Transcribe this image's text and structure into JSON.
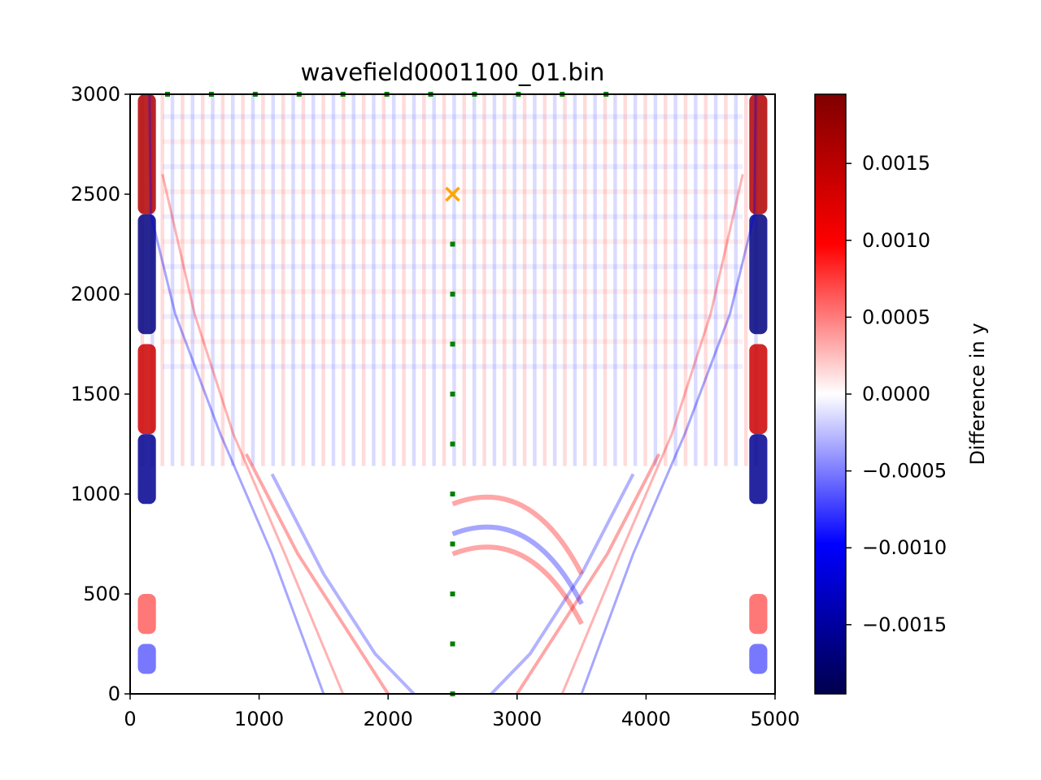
{
  "chart_data": {
    "type": "heatmap",
    "title": "wavefield0001100_01.bin",
    "xlabel": "",
    "ylabel": "",
    "xlim": [
      0,
      5000
    ],
    "ylim": [
      0,
      3000
    ],
    "xticks": [
      0,
      1000,
      2000,
      3000,
      4000,
      5000
    ],
    "yticks": [
      0,
      500,
      1000,
      1500,
      2000,
      2500,
      3000
    ],
    "xtick_labels": [
      "0",
      "1000",
      "2000",
      "3000",
      "4000",
      "5000"
    ],
    "ytick_labels": [
      "0",
      "500",
      "1000",
      "1500",
      "2000",
      "2500",
      "3000"
    ],
    "colormap": "seismic",
    "colorbar": {
      "label": "Difference in y",
      "range": [
        -0.00195,
        0.00195
      ],
      "ticks": [
        -0.0015,
        -0.001,
        -0.0005,
        0.0,
        0.0005,
        0.001,
        0.0015
      ],
      "tick_labels": [
        "−0.0015",
        "−0.0010",
        "−0.0005",
        "0.0000",
        "0.0005",
        "0.0010",
        "0.0015"
      ]
    },
    "source": {
      "x": 2500,
      "y": 2500,
      "marker": "x",
      "color": "#ffa500"
    },
    "receivers_surface": {
      "x": [
        290,
        630,
        970,
        1310,
        1650,
        1990,
        2330,
        2670,
        3010,
        3350,
        3690
      ],
      "y": 3000,
      "marker": "square",
      "color": "#008000"
    },
    "receivers_well": {
      "x": 2500,
      "y": [
        0,
        250,
        500,
        750,
        1000,
        1250,
        1500,
        1750,
        2000,
        2250
      ],
      "marker": "square",
      "color": "#008000"
    }
  }
}
